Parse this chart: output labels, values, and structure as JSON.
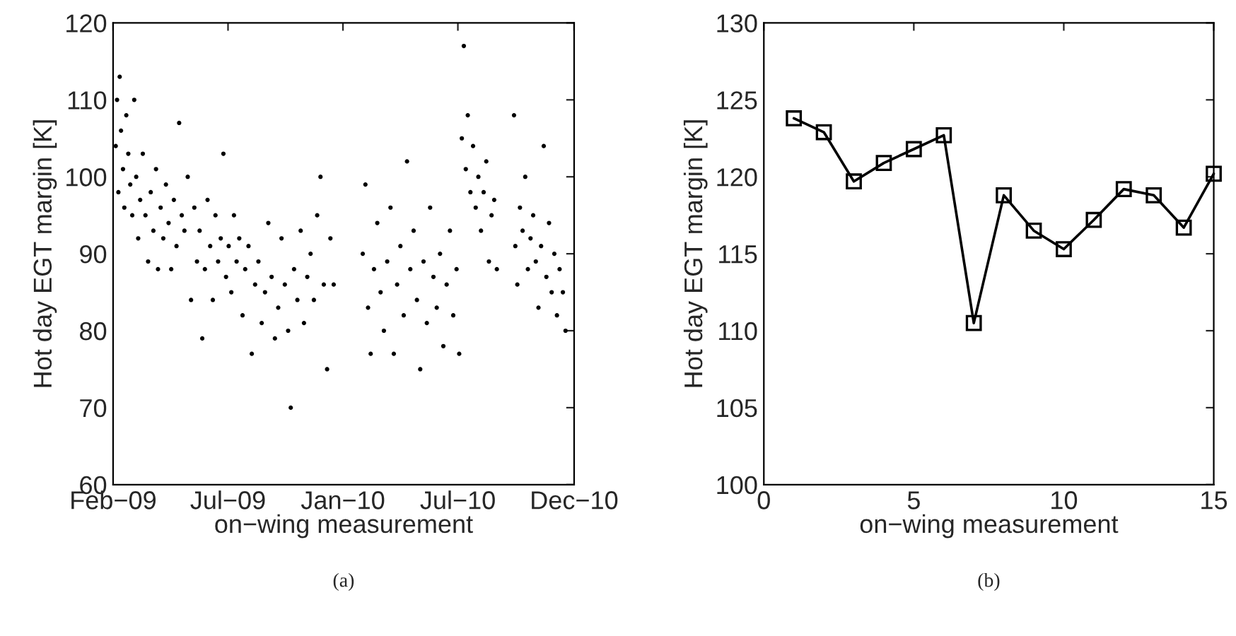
{
  "chart_data": [
    {
      "type": "scatter",
      "xlabel": "on−wing measurement",
      "ylabel": "Hot day EGT margin [K]",
      "annotations": [
        "(a)"
      ],
      "grid": false,
      "marker": "circle",
      "color": "#000000",
      "x": [
        "2009-02-05",
        "2009-02-07",
        "2009-02-09",
        "2009-02-11",
        "2009-02-13",
        "2009-02-16",
        "2009-02-18",
        "2009-02-21",
        "2009-02-24",
        "2009-02-27",
        "2009-03-02",
        "2009-03-05",
        "2009-03-08",
        "2009-03-11",
        "2009-03-14",
        "2009-03-18",
        "2009-03-22",
        "2009-03-26",
        "2009-03-30",
        "2009-04-03",
        "2009-04-07",
        "2009-04-10",
        "2009-04-14",
        "2009-04-18",
        "2009-04-22",
        "2009-04-26",
        "2009-04-30",
        "2009-05-04",
        "2009-05-08",
        "2009-05-12",
        "2009-05-16",
        "2009-05-20",
        "2009-05-25",
        "2009-05-30",
        "2009-06-04",
        "2009-06-08",
        "2009-06-12",
        "2009-06-16",
        "2009-06-20",
        "2009-06-24",
        "2009-06-28",
        "2009-07-02",
        "2009-07-06",
        "2009-07-10",
        "2009-07-14",
        "2009-07-18",
        "2009-07-22",
        "2009-07-26",
        "2009-07-30",
        "2009-08-03",
        "2009-08-07",
        "2009-08-11",
        "2009-08-16",
        "2009-08-20",
        "2009-08-25",
        "2009-08-30",
        "2009-09-04",
        "2009-09-09",
        "2009-09-14",
        "2009-09-19",
        "2009-09-24",
        "2009-09-29",
        "2009-10-04",
        "2009-10-09",
        "2009-10-14",
        "2009-10-19",
        "2009-10-24",
        "2009-10-28",
        "2009-11-02",
        "2009-11-07",
        "2009-11-12",
        "2009-11-17",
        "2009-11-22",
        "2009-11-27",
        "2009-12-02",
        "2009-12-07",
        "2009-12-12",
        "2009-12-17",
        "2009-12-22",
        "2009-12-27",
        "2010-01-01",
        "2010-02-14",
        "2010-02-18",
        "2010-02-22",
        "2010-02-26",
        "2010-03-03",
        "2010-03-08",
        "2010-03-13",
        "2010-03-18",
        "2010-03-23",
        "2010-03-28",
        "2010-04-02",
        "2010-04-07",
        "2010-04-12",
        "2010-04-17",
        "2010-04-22",
        "2010-04-27",
        "2010-05-02",
        "2010-05-07",
        "2010-05-12",
        "2010-05-17",
        "2010-05-22",
        "2010-05-27",
        "2010-06-01",
        "2010-06-06",
        "2010-06-11",
        "2010-06-16",
        "2010-06-21",
        "2010-06-26",
        "2010-07-01",
        "2010-07-06",
        "2010-07-10",
        "2010-07-14",
        "2010-07-17",
        "2010-07-20",
        "2010-07-23",
        "2010-07-27",
        "2010-07-31",
        "2010-08-04",
        "2010-08-08",
        "2010-08-12",
        "2010-08-16",
        "2010-08-20",
        "2010-08-24",
        "2010-08-28",
        "2010-09-01",
        "2010-09-05",
        "2010-10-01",
        "2010-10-03",
        "2010-10-06",
        "2010-10-10",
        "2010-10-14",
        "2010-10-18",
        "2010-10-22",
        "2010-10-26",
        "2010-10-30",
        "2010-11-03",
        "2010-11-07",
        "2010-11-11",
        "2010-11-15",
        "2010-11-19",
        "2010-11-23",
        "2010-11-27",
        "2010-12-01",
        "2010-12-05",
        "2010-12-09",
        "2010-12-14",
        "2010-12-18"
      ],
      "values": [
        104,
        110,
        98,
        113,
        106,
        101,
        96,
        108,
        103,
        99,
        95,
        110,
        100,
        92,
        97,
        103,
        95,
        89,
        98,
        93,
        101,
        88,
        96,
        92,
        99,
        94,
        88,
        97,
        91,
        107,
        95,
        93,
        100,
        84,
        96,
        89,
        93,
        79,
        88,
        97,
        91,
        84,
        95,
        89,
        92,
        103,
        87,
        91,
        85,
        95,
        89,
        92,
        82,
        88,
        91,
        77,
        86,
        89,
        81,
        85,
        94,
        87,
        79,
        83,
        92,
        86,
        80,
        70,
        88,
        84,
        93,
        81,
        87,
        90,
        84,
        95,
        100,
        86,
        75,
        92,
        86,
        90,
        99,
        83,
        77,
        88,
        94,
        85,
        80,
        89,
        96,
        77,
        86,
        91,
        82,
        102,
        88,
        93,
        84,
        75,
        89,
        81,
        96,
        87,
        83,
        90,
        78,
        86,
        93,
        82,
        88,
        77,
        105,
        117,
        101,
        108,
        98,
        104,
        96,
        100,
        93,
        98,
        102,
        89,
        95,
        97,
        88,
        108,
        91,
        86,
        96,
        93,
        100,
        88,
        92,
        95,
        89,
        83,
        91,
        104,
        87,
        94,
        85,
        90,
        82,
        88,
        85,
        80
      ],
      "xlim": [
        "2009-02-01",
        "2010-12-31"
      ],
      "xticks": [
        {
          "value": "2009-02-01",
          "label": "Feb−09"
        },
        {
          "value": "2009-07-25",
          "label": "Jul−09"
        },
        {
          "value": "2010-01-15",
          "label": "Jan−10"
        },
        {
          "value": "2010-07-08",
          "label": "Jul−10"
        },
        {
          "value": "2010-12-31",
          "label": "Dec−10"
        }
      ],
      "ylim": [
        60,
        120
      ],
      "yticks": [
        60,
        70,
        80,
        90,
        100,
        110,
        120
      ]
    },
    {
      "type": "line",
      "xlabel": "on−wing measurement",
      "ylabel": "Hot day EGT margin [K]",
      "annotations": [
        "(b)"
      ],
      "grid": false,
      "marker": "square",
      "line_style": "solid",
      "color": "#000000",
      "x": [
        1,
        2,
        3,
        4,
        5,
        6,
        7,
        8,
        9,
        10,
        11,
        12,
        13,
        14,
        15
      ],
      "values": [
        123.8,
        122.9,
        119.7,
        120.9,
        121.8,
        122.7,
        110.5,
        118.8,
        116.5,
        115.3,
        117.2,
        119.2,
        118.8,
        116.7,
        120.2
      ],
      "xlim": [
        0,
        15
      ],
      "xticks": [
        0,
        5,
        10,
        15
      ],
      "ylim": [
        100,
        130
      ],
      "yticks": [
        100,
        105,
        110,
        115,
        120,
        125,
        130
      ]
    }
  ]
}
